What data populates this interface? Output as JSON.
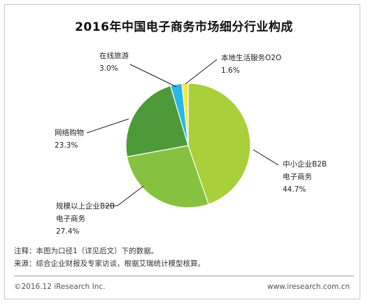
{
  "chart_data": {
    "type": "pie",
    "title": "2016年中国电子商务市场细分行业构成",
    "slices": [
      {
        "label_lines": [
          "中小企业B2B",
          "电子商务"
        ],
        "value": 44.7,
        "value_text": "44.7%",
        "color": "#a9cf3b"
      },
      {
        "label_lines": [
          "规模以上企业B2B",
          "电子商务"
        ],
        "value": 27.4,
        "value_text": "27.4%",
        "color": "#86c23f"
      },
      {
        "label_lines": [
          "网络购物"
        ],
        "value": 23.3,
        "value_text": "23.3%",
        "color": "#4e9a3a"
      },
      {
        "label_lines": [
          "在线旅游"
        ],
        "value": 3.0,
        "value_text": "3.0%",
        "color": "#2ab7e3"
      },
      {
        "label_lines": [
          "本地生活服务O2O"
        ],
        "value": 1.6,
        "value_text": "1.6%",
        "color": "#f3ea3a"
      }
    ]
  },
  "notes": {
    "note": "注释：本图为口径1（详见后文）下的数据。",
    "source": "来源：综合企业财报及专家访谈，根据艾瑞统计模型核算。"
  },
  "footer": {
    "copyright": "©2016.12 iResearch Inc.",
    "website": "www.iresearch.com.cn"
  }
}
